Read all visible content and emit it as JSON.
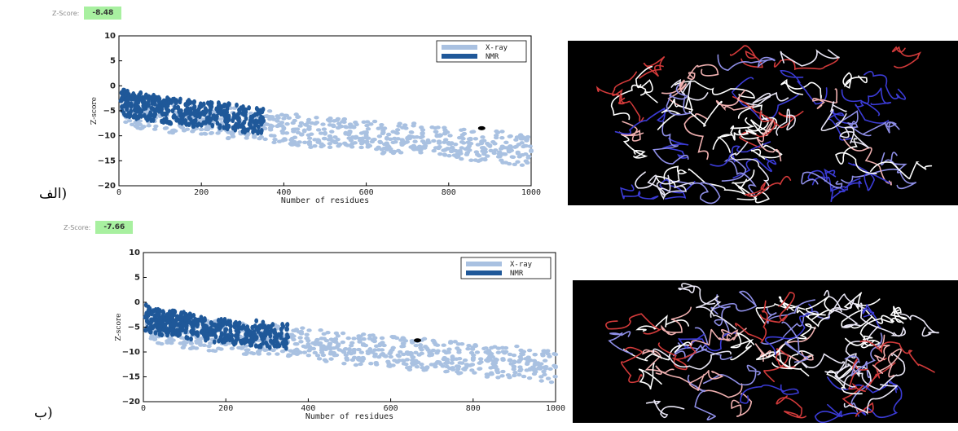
{
  "panels": [
    {
      "label": "الف)",
      "zscore_label": "Z-Score:",
      "zscore_value": "-8.48",
      "structure_icon": "protein-ribbon-structure"
    },
    {
      "label": "ب)",
      "zscore_label": "Z-Score:",
      "zscore_value": "-7.66",
      "structure_icon": "protein-ribbon-structure"
    }
  ],
  "chart_data": [
    {
      "type": "scatter",
      "title": "",
      "xlabel": "Number of residues",
      "ylabel": "Z-score",
      "xlim": [
        0,
        1000
      ],
      "ylim": [
        -20,
        10
      ],
      "xticks": [
        "0",
        "200",
        "400",
        "600",
        "800",
        "1000"
      ],
      "yticks": [
        "10",
        "5",
        "0",
        "−5",
        "−10",
        "−15",
        "−20"
      ],
      "legend": {
        "position": "top-right",
        "entries": [
          "X-ray",
          "NMR"
        ]
      },
      "series": [
        {
          "name": "X-ray",
          "color": "#a9c1e1",
          "x": [
            10,
            30,
            60,
            100,
            150,
            200,
            250,
            300,
            350,
            400,
            450,
            500,
            550,
            600,
            650,
            700,
            750,
            800,
            850,
            900,
            950,
            1000
          ],
          "y": [
            -4,
            -5,
            -5.5,
            -6,
            -6.5,
            -7,
            -7.5,
            -7.5,
            -8,
            -8.5,
            -9,
            -9.5,
            -9.5,
            -10,
            -10.5,
            -10.5,
            -11,
            -11.5,
            -12,
            -12,
            -12.5,
            -13
          ]
        },
        {
          "name": "NMR",
          "color": "#1f5899",
          "x": [
            5,
            20,
            40,
            60,
            80,
            100,
            120,
            150,
            180,
            200,
            230,
            260,
            290,
            320,
            350
          ],
          "y": [
            -3,
            -3.5,
            -4,
            -4,
            -4.5,
            -4.5,
            -5,
            -5,
            -5.5,
            -5.5,
            -6,
            -6,
            -6.5,
            -7,
            -7
          ]
        },
        {
          "name": "",
          "color": "#000000",
          "x": [
            880
          ],
          "y": [
            -8.48
          ]
        }
      ]
    },
    {
      "type": "scatter",
      "title": "",
      "xlabel": "Number of residues",
      "ylabel": "Z-score",
      "xlim": [
        0,
        1000
      ],
      "ylim": [
        -20,
        10
      ],
      "xticks": [
        "0",
        "200",
        "400",
        "600",
        "800",
        "1000"
      ],
      "yticks": [
        "10",
        "5",
        "0",
        "−5",
        "−10",
        "−15",
        "−20"
      ],
      "legend": {
        "position": "top-right",
        "entries": [
          "X-ray",
          "NMR"
        ]
      },
      "series": [
        {
          "name": "X-ray",
          "color": "#a9c1e1",
          "x": [
            10,
            30,
            60,
            100,
            150,
            200,
            250,
            300,
            350,
            400,
            450,
            500,
            550,
            600,
            650,
            700,
            750,
            800,
            850,
            900,
            950,
            1000
          ],
          "y": [
            -4,
            -5,
            -5.5,
            -6,
            -6.5,
            -7,
            -7.5,
            -7.5,
            -8,
            -8.5,
            -9,
            -9.5,
            -9.5,
            -10,
            -10.5,
            -10.5,
            -11,
            -11.5,
            -12,
            -12,
            -12.5,
            -13
          ]
        },
        {
          "name": "NMR",
          "color": "#1f5899",
          "x": [
            5,
            20,
            40,
            60,
            80,
            100,
            120,
            150,
            180,
            200,
            230,
            260,
            290,
            320,
            350
          ],
          "y": [
            -3,
            -3.5,
            -4,
            -4,
            -4.5,
            -4.5,
            -5,
            -5,
            -5.5,
            -5.5,
            -6,
            -6,
            -6.5,
            -7,
            -7
          ]
        },
        {
          "name": "",
          "color": "#000000",
          "x": [
            665
          ],
          "y": [
            -7.66
          ]
        }
      ]
    }
  ]
}
